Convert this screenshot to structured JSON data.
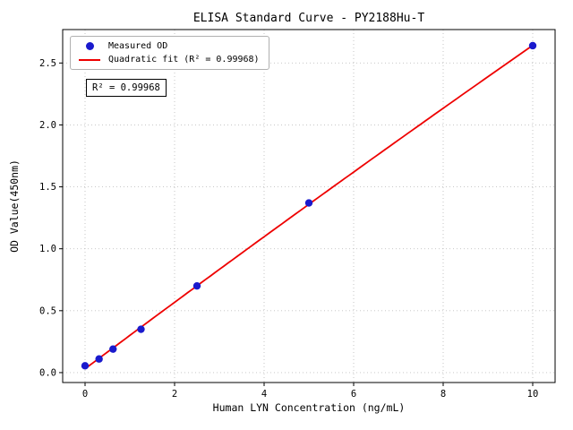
{
  "chart_data": {
    "type": "scatter",
    "title": "ELISA Standard Curve - PY2188Hu-T",
    "xlabel": "Human LYN Concentration (ng/mL)",
    "ylabel": "OD Value(450nm)",
    "xlim": [
      -0.5,
      10.5
    ],
    "ylim": [
      -0.08,
      2.77
    ],
    "xticks": [
      0,
      2,
      4,
      6,
      8,
      10
    ],
    "xtick_labels": [
      "0",
      "2",
      "4",
      "6",
      "8",
      "10"
    ],
    "yticks": [
      0.0,
      0.5,
      1.0,
      1.5,
      2.0,
      2.5
    ],
    "ytick_labels": [
      "0.0",
      "0.5",
      "1.0",
      "1.5",
      "2.0",
      "2.5"
    ],
    "grid": true,
    "grid_style": "dotted",
    "grid_color": "#c0c0c0",
    "annotation": "R² = 0.99968",
    "legend": {
      "position": "upper-left",
      "entries": [
        {
          "label": "Measured OD",
          "marker": "dot",
          "color": "#1a1acd"
        },
        {
          "label": "Quadratic fit (R² = 0.99968)",
          "marker": "line",
          "color": "#ee0000"
        }
      ]
    },
    "series": [
      {
        "name": "Measured OD",
        "type": "scatter",
        "color": "#1a1acd",
        "x": [
          0,
          0.313,
          0.625,
          1.25,
          2.5,
          5,
          10
        ],
        "y": [
          0.055,
          0.11,
          0.19,
          0.35,
          0.7,
          1.37,
          2.64
        ]
      },
      {
        "name": "Quadratic fit",
        "type": "quadratic-fit",
        "color": "#ee0000",
        "r_squared": 0.99968
      }
    ]
  }
}
